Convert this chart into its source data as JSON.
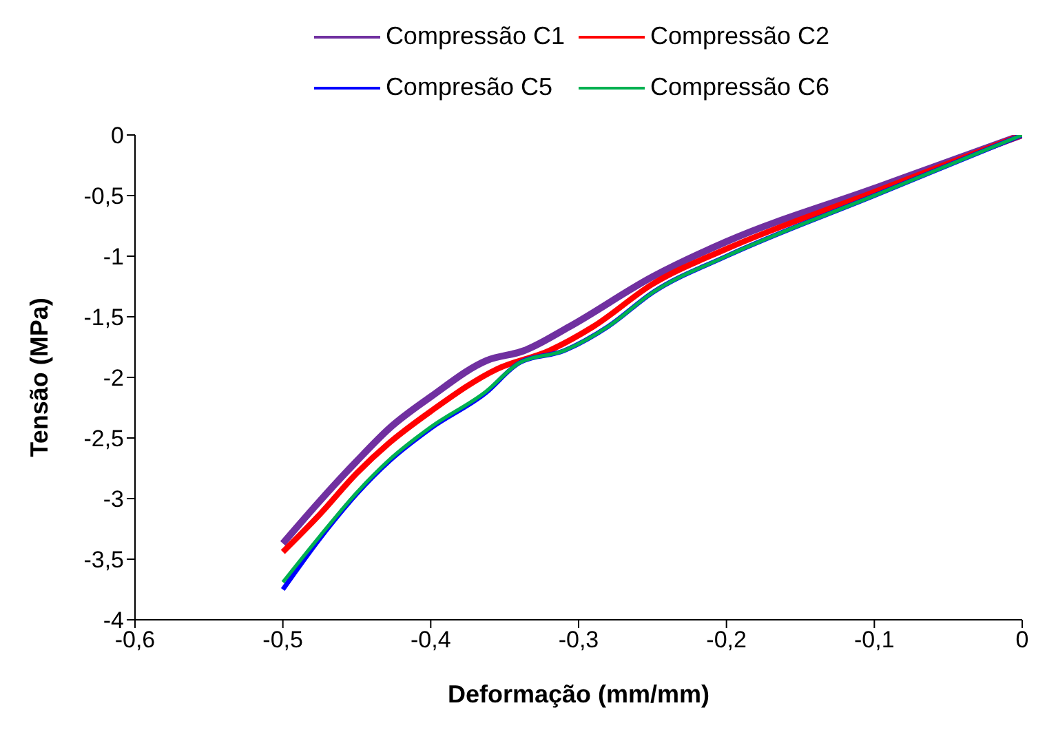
{
  "chart_data": {
    "type": "line",
    "xlabel": "Deformação (mm/mm)",
    "ylabel": "Tensão (MPa)",
    "xlim": [
      -0.6,
      0
    ],
    "xticks": [
      {
        "value": -0.6,
        "label": "-0,6"
      },
      {
        "value": -0.5,
        "label": "-0,5"
      },
      {
        "value": -0.4,
        "label": "-0,4"
      },
      {
        "value": -0.3,
        "label": "-0,3"
      },
      {
        "value": -0.2,
        "label": "-0,2"
      },
      {
        "value": -0.1,
        "label": "-0,1"
      },
      {
        "value": 0,
        "label": "0"
      }
    ],
    "ylim": [
      -4,
      0
    ],
    "yticks": [
      {
        "value": -4,
        "label": "-4"
      },
      {
        "value": -3.5,
        "label": "-3,5"
      },
      {
        "value": -3,
        "label": "-3"
      },
      {
        "value": -2.5,
        "label": "-2,5"
      },
      {
        "value": -2,
        "label": "-2"
      },
      {
        "value": -1.5,
        "label": "-1,5"
      },
      {
        "value": -1,
        "label": "-1"
      },
      {
        "value": -0.5,
        "label": "-0,5"
      },
      {
        "value": 0,
        "label": "0"
      }
    ],
    "grid": false,
    "legend": "top",
    "marker": "none",
    "series": [
      {
        "name": "Compressão C1",
        "color": "#7030a0",
        "x": [
          -0.5,
          -0.475,
          -0.45,
          -0.428,
          -0.4,
          -0.362,
          -0.337,
          -0.306,
          -0.25,
          -0.2,
          -0.1,
          0
        ],
        "values": [
          -3.37,
          -3.02,
          -2.69,
          -2.42,
          -2.16,
          -1.86,
          -1.78,
          -1.58,
          -1.17,
          -0.88,
          -0.44,
          0
        ]
      },
      {
        "name": "Compressão C2",
        "color": "#ff0000",
        "x": [
          -0.5,
          -0.475,
          -0.45,
          -0.428,
          -0.4,
          -0.355,
          -0.32,
          -0.29,
          -0.25,
          -0.2,
          -0.1,
          0
        ],
        "values": [
          -3.44,
          -3.13,
          -2.79,
          -2.54,
          -2.28,
          -1.93,
          -1.78,
          -1.58,
          -1.23,
          -0.94,
          -0.47,
          0
        ]
      },
      {
        "name": "Compresão C5",
        "color": "#0000ff",
        "x": [
          -0.5,
          -0.475,
          -0.45,
          -0.428,
          -0.4,
          -0.363,
          -0.34,
          -0.31,
          -0.28,
          -0.25,
          -0.2,
          -0.1,
          0
        ],
        "values": [
          -3.75,
          -3.33,
          -2.96,
          -2.69,
          -2.42,
          -2.13,
          -1.88,
          -1.78,
          -1.58,
          -1.3,
          -1.0,
          -0.5,
          0
        ]
      },
      {
        "name": "Compressão C6",
        "color": "#00b050",
        "x": [
          -0.5,
          -0.475,
          -0.45,
          -0.428,
          -0.4,
          -0.363,
          -0.34,
          -0.31,
          -0.28,
          -0.25,
          -0.2,
          -0.1,
          0
        ],
        "values": [
          -3.69,
          -3.31,
          -2.95,
          -2.68,
          -2.41,
          -2.12,
          -1.88,
          -1.78,
          -1.58,
          -1.3,
          -1.0,
          -0.5,
          0
        ]
      }
    ]
  }
}
